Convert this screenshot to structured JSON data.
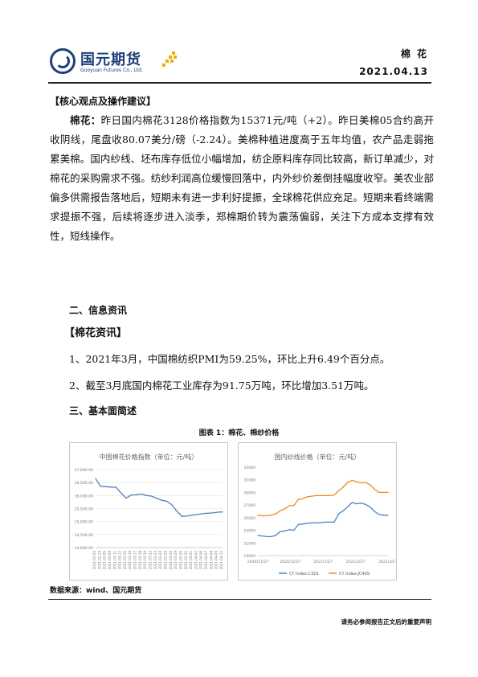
{
  "header": {
    "company_name": "国元期货",
    "company_name_en": "Guoyuan Futures Co., Ltd.",
    "category": "棉 花",
    "date": "2021.04.13",
    "accent_color": "#1f3f7a",
    "dot_color": "#e8b200"
  },
  "section1": {
    "title": "【核心观点及操作建议】",
    "lead": "棉花：",
    "body": "昨日国内棉花3128价格指数为15371元/吨（+2）。昨日美棉05合约高开收阴线，尾盘收80.07美分/磅（-2.24）。美棉种植进度高于五年均值，农产品走弱拖累美棉。国内纱线、坯布库存低位小幅增加，纺企原料库存同比较高，新订单减少，对棉花的采购需求不强。纺纱利润高位缓慢回落中，内外纱价差倒挂幅度收窄。美农业部偏多供需报告落地后，短期未有进一步利好提振，全球棉花供应充足。短期来看终端需求提振不强，后续将逐步进入淡季，郑棉期价转为震荡偏弱，关注下方成本支撑有效性，短线操作。"
  },
  "section2": {
    "title": "二、信息资讯",
    "subtitle": "【棉花资讯】",
    "items": [
      "1、2021年3月，中国棉纺织PMI为59.25%，环比上升6.49个百分点。",
      "2、截至3月底国内棉花工业库存为91.75万吨，环比增加3.51万吨。"
    ]
  },
  "section3": {
    "title": "三、基本面简述"
  },
  "figure": {
    "caption": "图表 1：棉花、棉纱价格"
  },
  "chart_data": [
    {
      "type": "line",
      "title": "中国棉花价格指数（单位：元/吨）",
      "ylim": [
        14000,
        17000
      ],
      "yticks": [
        "17,000.00",
        "16,500.00",
        "16,000.00",
        "15,500.00",
        "15,000.00",
        "14,500.00",
        "14,000.00"
      ],
      "xticks": [
        "2021-02-05",
        "2021-02-24",
        "2021-03-05",
        "2021-03-08",
        "2021-03-11",
        "2021-03-12",
        "2021-03-15",
        "2021-03-16",
        "2021-03-17",
        "2021-03-18",
        "2021-03-19",
        "2021-03-22",
        "2021-03-23",
        "2021-03-24",
        "2021-03-25",
        "2021-03-26",
        "2021-03-29",
        "2021-03-30",
        "2021-03-31",
        "2021-04-01",
        "2021-04-02",
        "2021-04-06",
        "2021-04-07",
        "2021-04-08",
        "2021-04-09",
        "2021-04-12"
      ],
      "series": [
        {
          "color": "#4f81bd",
          "values": [
            16650,
            16350,
            16340,
            16330,
            16320,
            16100,
            15900,
            16020,
            16030,
            16060,
            16000,
            15980,
            15900,
            15820,
            15780,
            15650,
            15400,
            15200,
            15210,
            15250,
            15270,
            15300,
            15320,
            15330,
            15360,
            15371
          ]
        }
      ]
    },
    {
      "type": "line",
      "title": "国内纱线价格（单位：元/吨）",
      "ylim": [
        19000,
        33000
      ],
      "yticks": [
        "33000",
        "31000",
        "29000",
        "27000",
        "25000",
        "23000",
        "21000",
        "19000"
      ],
      "xticks": [
        "2020/11/27",
        "2020/12/27",
        "2021/1/27",
        "2021/2/27",
        "2021/3/27"
      ],
      "series": [
        {
          "name": "CY Index:C32S",
          "color": "#4f81bd",
          "values": [
            22200,
            22100,
            22000,
            22000,
            22200,
            22800,
            22900,
            23100,
            23000,
            23900,
            24000,
            24100,
            24200,
            24200,
            24200,
            24300,
            24300,
            24300,
            25600,
            26100,
            26700,
            27400,
            27200,
            27300,
            27100,
            26700,
            26000,
            25500,
            25400,
            25400
          ]
        },
        {
          "name": "CY Index:JC40S",
          "color": "#f08a24",
          "values": [
            25400,
            25300,
            25300,
            25400,
            25600,
            26100,
            26400,
            26900,
            26900,
            27900,
            28000,
            28300,
            28400,
            28500,
            28500,
            28500,
            28500,
            28600,
            29300,
            29800,
            30600,
            30900,
            30700,
            30500,
            30600,
            30200,
            29500,
            29000,
            29000,
            29000
          ]
        }
      ]
    }
  ],
  "source": "数据来源：wind、国元期货",
  "footer": {
    "disclaimer": "请务必参阅报告正文后的重要声明"
  }
}
